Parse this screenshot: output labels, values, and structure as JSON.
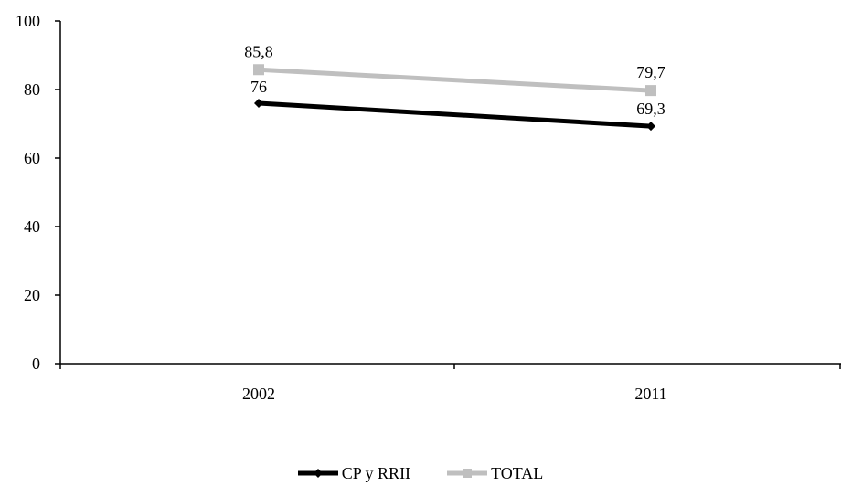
{
  "chart_data": {
    "type": "line",
    "title": "",
    "xlabel": "",
    "ylabel": "",
    "categories": [
      "2002",
      "2011"
    ],
    "ylim": [
      0,
      100
    ],
    "yticks": [
      0,
      20,
      40,
      60,
      80,
      100
    ],
    "y_tick_labels": [
      "0",
      "20",
      "40",
      "60",
      "80",
      "100"
    ],
    "grid": false,
    "legend_position": "bottom",
    "series": [
      {
        "name": "CP y RRII",
        "values": [
          76,
          69.3
        ],
        "labels": [
          "76",
          "69,3"
        ],
        "color": "#000000",
        "marker": "diamond"
      },
      {
        "name": "TOTAL",
        "values": [
          85.8,
          79.7
        ],
        "labels": [
          "85,8",
          "79,7"
        ],
        "color": "#bfbfbf",
        "marker": "square"
      }
    ]
  }
}
